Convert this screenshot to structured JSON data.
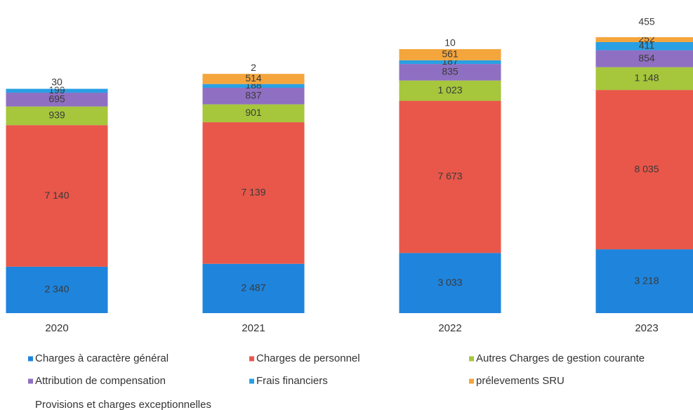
{
  "chart_data": {
    "type": "stacked-bar",
    "categories": [
      "2020",
      "2021",
      "2022",
      "2023"
    ],
    "series": [
      {
        "name": "Charges à caractère général",
        "color": "#1f84dc",
        "values": [
          2340,
          2487,
          3033,
          3218
        ],
        "value_labels": [
          "2 340",
          "2 487",
          "3 033",
          "3 218"
        ]
      },
      {
        "name": "Charges de personnel",
        "color": "#e8574a",
        "values": [
          7140,
          7139,
          7673,
          8035
        ],
        "value_labels": [
          "7 140",
          "7 139",
          "7 673",
          "8 035"
        ]
      },
      {
        "name": "Autres Charges de gestion courante",
        "color": "#a6c63c",
        "values": [
          939,
          901,
          1023,
          1148
        ],
        "value_labels": [
          "939",
          "901",
          "1 023",
          "1 148"
        ]
      },
      {
        "name": "Attribution de compensation",
        "color": "#8f6fc2",
        "values": [
          695,
          837,
          835,
          854
        ]
      },
      {
        "name": "Frais financiers",
        "color": "#2a9fe4",
        "values": [
          199,
          188,
          187,
          411
        ]
      },
      {
        "name": "prélevements SRU",
        "color": "#f4a53c",
        "values": [
          null,
          514,
          561,
          252
        ]
      },
      {
        "name": "Provisions et charges exceptionnelles",
        "color": "#ffffff",
        "values": [
          30,
          2,
          10,
          455
        ]
      }
    ],
    "legend": "bottom"
  }
}
